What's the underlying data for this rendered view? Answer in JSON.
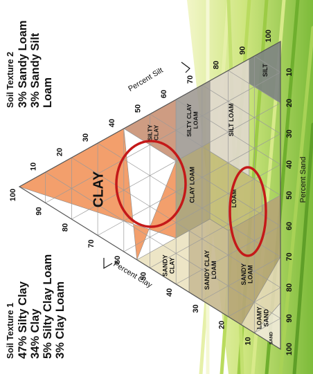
{
  "legend_left": {
    "heading": "Soil Texture 1",
    "lines": [
      "47% Silty Clay",
      "34% Clay",
      "5% Silty Clay Loam",
      "3% Clay Loam"
    ]
  },
  "legend_top": {
    "heading": "Soil Texture 2",
    "lines": [
      "3% Sandy Loam",
      "3% Sandy Silt Loam"
    ]
  },
  "axes": {
    "silt_title": "Percent Silt",
    "clay_title": "Percent Clay",
    "sand_title": "Percent Sand",
    "silt_ticks": [
      "10",
      "20",
      "30",
      "40",
      "50",
      "60",
      "70",
      "80",
      "90",
      "100"
    ],
    "clay_ticks": [
      "10",
      "20",
      "30",
      "40",
      "50",
      "60",
      "70",
      "80",
      "90",
      "100"
    ],
    "sand_ticks": [
      "10",
      "20",
      "30",
      "40",
      "50",
      "60",
      "70",
      "80",
      "90",
      "100"
    ]
  },
  "regions": [
    {
      "id": "clay",
      "label": "CLAY",
      "color": "#f2955c"
    },
    {
      "id": "silty-clay",
      "label": "SILTY CLAY",
      "color": "#c99174"
    },
    {
      "id": "silty-clay-loam",
      "label": "SILTY CLAY LOAM",
      "color": "#a09a94"
    },
    {
      "id": "clay-loam",
      "label": "CLAY LOAM",
      "color": "#a99d70"
    },
    {
      "id": "sandy-clay",
      "label": "SANDY CLAY",
      "color": "#ebe2c0"
    },
    {
      "id": "sandy-clay-loam",
      "label": "SANDY CLAY LOAM",
      "color": "#c6b88f"
    },
    {
      "id": "loam",
      "label": "LOAM",
      "color": "#c2ba77"
    },
    {
      "id": "silt-loam",
      "label": "SILT LOAM",
      "color": "#dfd7cd"
    },
    {
      "id": "silt",
      "label": "SILT",
      "color": "#7d8383"
    },
    {
      "id": "sandy-loam",
      "label": "SANDY LOAM",
      "color": "#b6a477"
    },
    {
      "id": "loamy-sand",
      "label": "LOAMY SAND",
      "color": "#e4d8b8"
    },
    {
      "id": "sand",
      "label": "SAND",
      "color": "#f2eadb"
    }
  ],
  "colors": {
    "highlight_ring": "#c41919",
    "grid": "#9a9a9a",
    "ink": "#111111",
    "grass": "#a5cf4f"
  }
}
